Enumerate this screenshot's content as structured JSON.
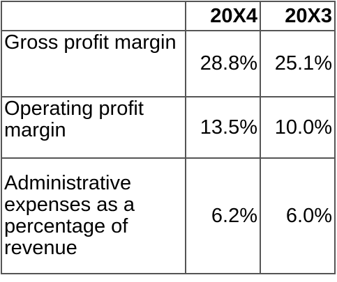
{
  "table": {
    "columns": [
      "20X4",
      "20X3"
    ],
    "rows": [
      [
        "Gross profit margin",
        "28.8%",
        "25.1%"
      ],
      [
        "Operating profit margin",
        "13.5%",
        "10.0%"
      ],
      [
        "Administrative expenses as a percentage of revenue",
        "6.2%",
        "6.0%"
      ]
    ]
  }
}
